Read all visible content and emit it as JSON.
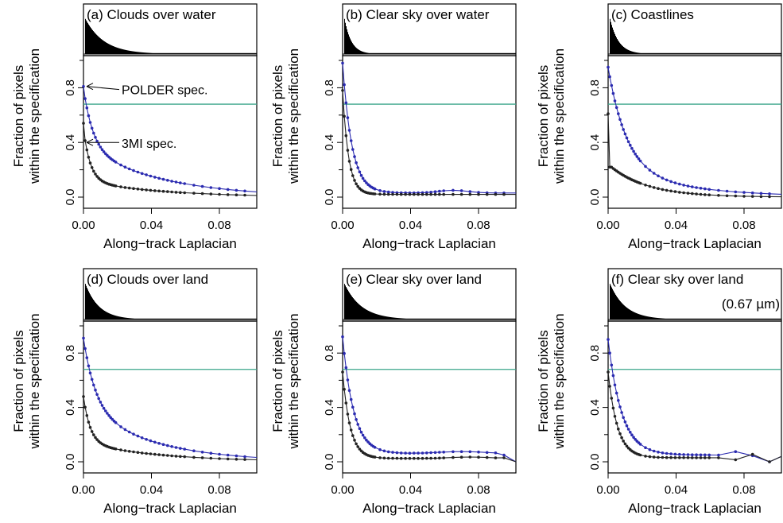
{
  "figure": {
    "xlabel": "Along−track Laplacian",
    "ylabel_line1": "Fraction of pixels",
    "ylabel_line2": "within the specification",
    "x_ticks": [
      "0.00",
      "0.04",
      "0.08"
    ],
    "y_ticks": [
      "0.0",
      "0.4",
      "0.8"
    ],
    "annotations": {
      "polder": "POLDER spec.",
      "threemi": "3MI spec."
    },
    "colors": {
      "polder_series": "#2b2bb0",
      "threemi_series": "#222222",
      "threshold_line": "#3aa58a",
      "histogram": "#000000"
    }
  },
  "chart_data": [
    {
      "type": "line",
      "title": "(a) Clouds over water",
      "xlabel": "Along−track Laplacian",
      "ylabel": "Fraction of pixels within the specification",
      "xlim": [
        0,
        0.102
      ],
      "ylim": [
        0,
        1.0
      ],
      "threshold": 0.68,
      "histogram": {
        "peak_at": 0.0,
        "decay": 0.011
      },
      "series": [
        {
          "name": "POLDER spec.",
          "y0": 0.81,
          "asym": 0.0,
          "a1": 0.43,
          "k1": 0.0055,
          "a2": 0.37,
          "k2": 0.045,
          "bumps": []
        },
        {
          "name": "3MI spec.",
          "y0": 0.54,
          "asym": 0.0,
          "a1": 0.38,
          "k1": 0.004,
          "a2": 0.12,
          "k2": 0.045,
          "bumps": []
        }
      ]
    },
    {
      "type": "line",
      "title": "(b) Clear sky over water",
      "xlabel": "Along−track Laplacian",
      "ylabel": "Fraction of pixels within the specification",
      "xlim": [
        0,
        0.102
      ],
      "ylim": [
        0,
        1.0
      ],
      "threshold": 0.68,
      "histogram": {
        "peak_at": 0.0,
        "decay": 0.004
      },
      "series": [
        {
          "name": "",
          "y0": 0.98,
          "asym": 0.03,
          "a1": 0.95,
          "k1": 0.0055,
          "a2": 0.0,
          "k2": 0.05,
          "bumps": [
            [
              0.065,
              0.02,
              0.012
            ]
          ]
        },
        {
          "name": "",
          "y0": 0.78,
          "asym": 0.02,
          "a1": 0.76,
          "k1": 0.0035,
          "a2": 0.0,
          "k2": 0.05,
          "bumps": []
        }
      ]
    },
    {
      "type": "line",
      "title": "(c) Coastlines",
      "xlabel": "Along−track Laplacian",
      "ylabel": "Fraction of pixels within the specification",
      "xlim": [
        0,
        0.102
      ],
      "ylim": [
        0,
        1.0
      ],
      "threshold": 0.68,
      "histogram": {
        "peak_at": 0.0,
        "decay": 0.005
      },
      "series": [
        {
          "name": "",
          "y0": 0.95,
          "asym": 0.0,
          "a1": 0.75,
          "k1": 0.011,
          "a2": 0.2,
          "k2": 0.045,
          "bumps": []
        },
        {
          "name": "",
          "y0": 0.61,
          "asym": 0.0,
          "a1": 0.0,
          "k1": 0.01,
          "a2": 0.24,
          "k2": 0.022,
          "drop": 0.38,
          "bumps": []
        }
      ]
    },
    {
      "type": "line",
      "title": "(d) Clouds over land",
      "xlabel": "Along−track Laplacian",
      "ylabel": "Fraction of pixels within the specification",
      "xlim": [
        0,
        0.102
      ],
      "ylim": [
        0,
        1.0
      ],
      "threshold": 0.68,
      "histogram": {
        "peak_at": 0.0,
        "decay": 0.008
      },
      "series": [
        {
          "name": "",
          "y0": 0.91,
          "asym": 0.0,
          "a1": 0.5,
          "k1": 0.007,
          "a2": 0.41,
          "k2": 0.04,
          "bumps": []
        },
        {
          "name": "",
          "y0": 0.48,
          "asym": 0.0,
          "a1": 0.34,
          "k1": 0.004,
          "a2": 0.14,
          "k2": 0.045,
          "bumps": []
        }
      ]
    },
    {
      "type": "line",
      "title": "(e) Clear sky over land",
      "xlabel": "Along−track Laplacian",
      "ylabel": "Fraction of pixels within the specification",
      "xlim": [
        0,
        0.102
      ],
      "ylim": [
        0,
        1.0
      ],
      "threshold": 0.68,
      "histogram": {
        "peak_at": 0.0,
        "decay": 0.01
      },
      "series": [
        {
          "name": "",
          "y0": 0.92,
          "asym": 0.06,
          "a1": 0.86,
          "k1": 0.0065,
          "a2": 0.0,
          "k2": 0.05,
          "bumps": [
            [
              0.07,
              0.015,
              0.02
            ]
          ],
          "tail": [
            [
              0.095,
              0.05
            ],
            [
              0.102,
              0.0
            ]
          ]
        },
        {
          "name": "",
          "y0": 0.66,
          "asym": 0.025,
          "a1": 0.635,
          "k1": 0.0045,
          "a2": 0.0,
          "k2": 0.05,
          "bumps": [
            [
              0.075,
              0.01,
              0.015
            ]
          ],
          "tail": [
            [
              0.095,
              0.03
            ],
            [
              0.102,
              0.0
            ]
          ]
        }
      ]
    },
    {
      "type": "line",
      "title": "(f) Clear sky over land",
      "subtitle": "(0.67 µm)",
      "xlabel": "Along−track Laplacian",
      "ylabel": "Fraction of pixels within the specification",
      "xlim": [
        0,
        0.102
      ],
      "ylim": [
        0,
        1.0
      ],
      "threshold": 0.68,
      "histogram": {
        "peak_at": 0.0,
        "decay": 0.009
      },
      "series": [
        {
          "name": "",
          "y0": 0.9,
          "asym": 0.05,
          "a1": 0.85,
          "k1": 0.008,
          "a2": 0.0,
          "k2": 0.05,
          "bumps": [],
          "tail": [
            [
              0.065,
              0.05
            ],
            [
              0.075,
              0.075
            ],
            [
              0.085,
              0.045
            ],
            [
              0.095,
              0.0
            ],
            [
              0.102,
              0.04
            ]
          ]
        },
        {
          "name": "",
          "y0": 0.66,
          "asym": 0.03,
          "a1": 0.63,
          "k1": 0.0055,
          "a2": 0.0,
          "k2": 0.05,
          "bumps": [],
          "tail": [
            [
              0.065,
              0.03
            ],
            [
              0.075,
              0.015
            ],
            [
              0.085,
              0.055
            ],
            [
              0.095,
              0.0
            ],
            [
              0.102,
              0.04
            ]
          ]
        }
      ]
    }
  ]
}
